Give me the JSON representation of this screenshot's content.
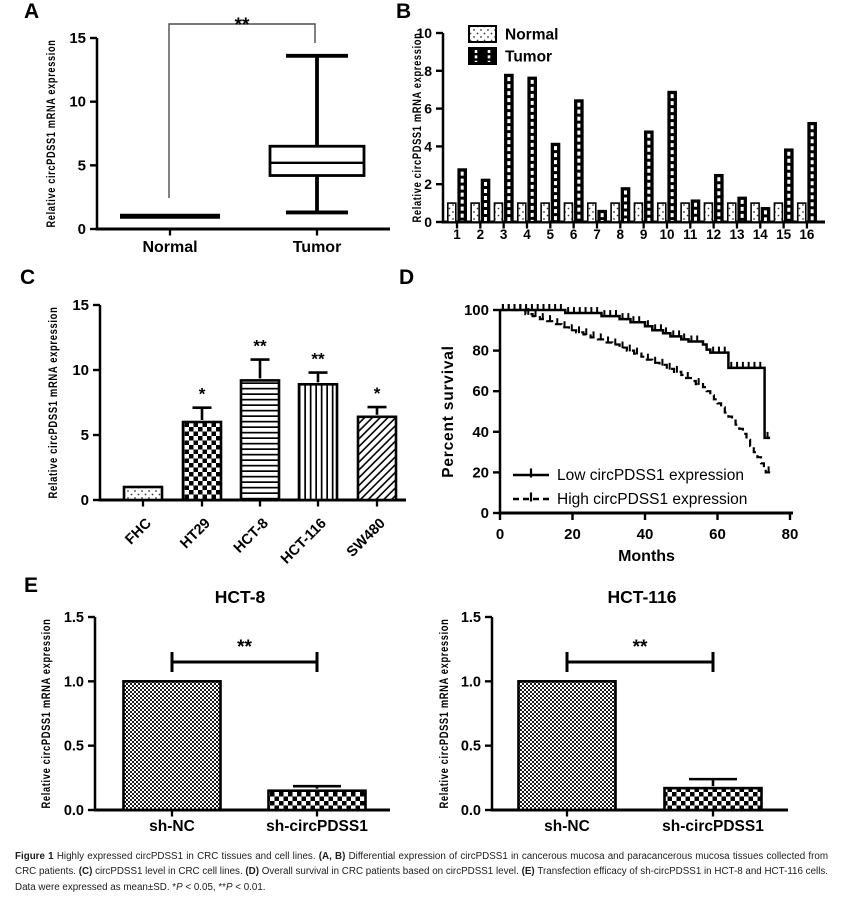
{
  "panel_labels": {
    "A": "A",
    "B": "B",
    "C": "C",
    "D": "D",
    "E": "E"
  },
  "caption": {
    "segments": [
      {
        "text": "Figure 1 ",
        "bold": true
      },
      {
        "text": "Highly expressed circPDSS1 in CRC tissues and cell lines. ",
        "bold": false
      },
      {
        "text": "(A, B) ",
        "bold": true
      },
      {
        "text": "Differential expression of circPDSS1 in cancerous mucosa and paracancerous mucosa tissues collected from CRC patients. ",
        "bold": false
      },
      {
        "text": "(C) ",
        "bold": true
      },
      {
        "text": "circPDSS1 level in CRC cell lines. ",
        "bold": false
      },
      {
        "text": "(D) ",
        "bold": true
      },
      {
        "text": "Overall survival in CRC patients based on circPDSS1 level. ",
        "bold": false
      },
      {
        "text": "(E) ",
        "bold": true
      },
      {
        "text": "Transfection efficacy of sh-circPDSS1 in HCT-8 and HCT-116 cells. Data were expressed as mean±SD. *",
        "bold": false
      },
      {
        "text": "P",
        "italic": true
      },
      {
        "text": " < 0.05, **",
        "bold": false
      },
      {
        "text": "P",
        "italic": true
      },
      {
        "text": " < 0.01.",
        "bold": false
      }
    ]
  },
  "chart_data": [
    {
      "panel": "A",
      "type": "box",
      "ylabel": "Relative circPDSS1 mRNA expression",
      "ylim": [
        0,
        15
      ],
      "yticks": [
        0,
        5,
        10,
        15
      ],
      "categories": [
        "Normal",
        "Tumor"
      ],
      "groups": [
        {
          "category": "Normal",
          "display": "flat-line",
          "value": 1.0
        },
        {
          "category": "Tumor",
          "whisker_low": 1.3,
          "q1": 4.2,
          "median": 5.2,
          "q3": 6.5,
          "whisker_high": 13.6
        }
      ],
      "significance": {
        "label": "**",
        "between": [
          "Normal",
          "Tumor"
        ]
      }
    },
    {
      "panel": "B",
      "type": "bar",
      "ylabel": "Relative circPDSS1 mRNA expression",
      "ylim": [
        0,
        10
      ],
      "yticks": [
        0,
        2,
        4,
        6,
        8,
        10
      ],
      "categories": [
        "1",
        "2",
        "3",
        "4",
        "5",
        "6",
        "7",
        "8",
        "9",
        "10",
        "11",
        "12",
        "13",
        "14",
        "15",
        "16"
      ],
      "series": [
        {
          "name": "Normal",
          "pattern": "dots",
          "values": [
            1,
            1,
            1,
            1,
            1,
            1,
            1,
            1,
            1,
            1,
            1,
            1,
            1,
            1,
            1,
            1
          ]
        },
        {
          "name": "Tumor",
          "pattern": "dark-dashed",
          "values": [
            2.8,
            2.25,
            7.8,
            7.65,
            4.15,
            6.45,
            0.6,
            1.8,
            4.8,
            6.9,
            1.15,
            2.5,
            1.3,
            0.75,
            3.85,
            5.25
          ]
        }
      ],
      "legend_position": "top-left-inside"
    },
    {
      "panel": "C",
      "type": "bar",
      "ylabel": "Relative circPDSS1 mRNA expression",
      "ylim": [
        0,
        15
      ],
      "yticks": [
        0,
        5,
        10,
        15
      ],
      "categories": [
        "FHC",
        "HT29",
        "HCT-8",
        "HCT-116",
        "SW480"
      ],
      "values": [
        1.0,
        6.0,
        9.2,
        8.9,
        6.4
      ],
      "errors": [
        0,
        1.1,
        1.6,
        0.9,
        0.75
      ],
      "significance_marks": [
        "",
        "*",
        "**",
        "**",
        "*"
      ],
      "patterns": [
        "dots",
        "checker",
        "hlines",
        "vlines",
        "diag"
      ]
    },
    {
      "panel": "D",
      "type": "line",
      "subtype": "kaplan-meier",
      "xlabel": "Months",
      "ylabel": "Percent survival",
      "xlim": [
        0,
        80
      ],
      "ylim": [
        0,
        100
      ],
      "xticks": [
        0,
        20,
        40,
        60,
        80
      ],
      "yticks": [
        0,
        20,
        40,
        60,
        80,
        100
      ],
      "legend_position": "bottom-left-inside",
      "series": [
        {
          "name": "Low circPDSS1 expression",
          "style": "solid",
          "points": [
            [
              0,
              100
            ],
            [
              18,
              100
            ],
            [
              18,
              98.5
            ],
            [
              28,
              98.5
            ],
            [
              28,
              97
            ],
            [
              33,
              97
            ],
            [
              33,
              95.5
            ],
            [
              36,
              95.5
            ],
            [
              36,
              94
            ],
            [
              40,
              94
            ],
            [
              40,
              92
            ],
            [
              42,
              92
            ],
            [
              42,
              90
            ],
            [
              45,
              90
            ],
            [
              45,
              88.5
            ],
            [
              47,
              88.5
            ],
            [
              47,
              87
            ],
            [
              50,
              87
            ],
            [
              50,
              85.5
            ],
            [
              52,
              85.5
            ],
            [
              52,
              84.5
            ],
            [
              56,
              84.5
            ],
            [
              56,
              83
            ],
            [
              57,
              83
            ],
            [
              57,
              80.5
            ],
            [
              58,
              80.5
            ],
            [
              58,
              79
            ],
            [
              63,
              79
            ],
            [
              63,
              71.5
            ],
            [
              73,
              71.5
            ],
            [
              73,
              37
            ],
            [
              74.5,
              37
            ]
          ]
        },
        {
          "name": "High circPDSS1 expression",
          "style": "dashed",
          "points": [
            [
              0,
              100
            ],
            [
              7,
              100
            ],
            [
              7,
              98
            ],
            [
              9,
              98
            ],
            [
              9,
              97
            ],
            [
              11,
              97
            ],
            [
              11,
              95.5
            ],
            [
              13,
              95.5
            ],
            [
              13,
              94.5
            ],
            [
              15,
              94.5
            ],
            [
              15,
              93
            ],
            [
              17,
              93
            ],
            [
              17,
              91.5
            ],
            [
              19,
              91.5
            ],
            [
              19,
              90
            ],
            [
              21,
              90
            ],
            [
              21,
              89
            ],
            [
              23,
              89
            ],
            [
              23,
              88
            ],
            [
              25,
              88
            ],
            [
              25,
              86.5
            ],
            [
              27,
              86.5
            ],
            [
              27,
              85.5
            ],
            [
              29,
              85.5
            ],
            [
              29,
              84
            ],
            [
              31,
              84
            ],
            [
              31,
              83
            ],
            [
              33,
              83
            ],
            [
              33,
              81.5
            ],
            [
              35,
              81.5
            ],
            [
              35,
              80
            ],
            [
              37,
              80
            ],
            [
              37,
              78.5
            ],
            [
              39,
              78.5
            ],
            [
              39,
              77
            ],
            [
              40,
              77
            ],
            [
              40,
              75.5
            ],
            [
              42,
              75.5
            ],
            [
              42,
              74
            ],
            [
              44,
              74
            ],
            [
              44,
              73
            ],
            [
              46,
              73
            ],
            [
              46,
              71
            ],
            [
              48,
              71
            ],
            [
              48,
              69.5
            ],
            [
              50,
              69.5
            ],
            [
              50,
              68
            ],
            [
              51,
              68
            ],
            [
              51,
              66.5
            ],
            [
              53,
              66.5
            ],
            [
              53,
              65
            ],
            [
              54,
              65
            ],
            [
              54,
              63.5
            ],
            [
              56,
              63.5
            ],
            [
              56,
              62
            ],
            [
              57,
              62
            ],
            [
              57,
              60
            ],
            [
              58,
              60
            ],
            [
              58,
              58
            ],
            [
              59,
              58
            ],
            [
              59,
              56
            ],
            [
              60,
              56
            ],
            [
              60,
              54
            ],
            [
              61,
              54
            ],
            [
              61,
              52
            ],
            [
              62,
              52
            ],
            [
              62,
              49.5
            ],
            [
              63,
              49.5
            ],
            [
              63,
              47.5
            ],
            [
              64,
              47.5
            ],
            [
              64,
              45.5
            ],
            [
              65,
              45.5
            ],
            [
              65,
              43.5
            ],
            [
              66,
              43.5
            ],
            [
              66,
              41.5
            ],
            [
              67,
              41.5
            ],
            [
              67,
              39
            ],
            [
              68,
              39
            ],
            [
              68,
              36
            ],
            [
              69,
              36
            ],
            [
              69,
              33
            ],
            [
              70,
              33
            ],
            [
              70,
              30
            ],
            [
              71,
              30
            ],
            [
              71,
              27.5
            ],
            [
              72,
              27.5
            ],
            [
              72,
              24.5
            ],
            [
              72.8,
              24.5
            ],
            [
              72.8,
              22
            ],
            [
              73.3,
              22
            ],
            [
              73.3,
              20
            ],
            [
              74.5,
              20
            ]
          ]
        }
      ]
    },
    {
      "panel": "E",
      "title": "HCT-8",
      "type": "bar",
      "ylabel": "Relative circPDSS1 mRNA expression",
      "ylim": [
        0,
        1.5
      ],
      "yticks": [
        0,
        0.5,
        1,
        1.5
      ],
      "ytick_labels": [
        "0.0",
        "0.5",
        "1.0",
        "1.5"
      ],
      "categories": [
        "sh-NC",
        "sh-circPDSS1"
      ],
      "values": [
        1.0,
        0.15
      ],
      "errors": [
        0,
        0.035
      ],
      "patterns": [
        "checker-fine",
        "checker"
      ],
      "significance": {
        "label": "**",
        "between": [
          "sh-NC",
          "sh-circPDSS1"
        ]
      }
    },
    {
      "panel": "E",
      "title": "HCT-116",
      "type": "bar",
      "ylabel": "Relative circPDSS1 mRNA expression",
      "ylim": [
        0,
        1.5
      ],
      "yticks": [
        0,
        0.5,
        1,
        1.5
      ],
      "ytick_labels": [
        "0.0",
        "0.5",
        "1.0",
        "1.5"
      ],
      "categories": [
        "sh-NC",
        "sh-circPDSS1"
      ],
      "values": [
        1.0,
        0.17
      ],
      "errors": [
        0,
        0.07
      ],
      "patterns": [
        "checker-fine",
        "checker"
      ],
      "significance": {
        "label": "**",
        "between": [
          "sh-NC",
          "sh-circPDSS1"
        ]
      }
    }
  ]
}
